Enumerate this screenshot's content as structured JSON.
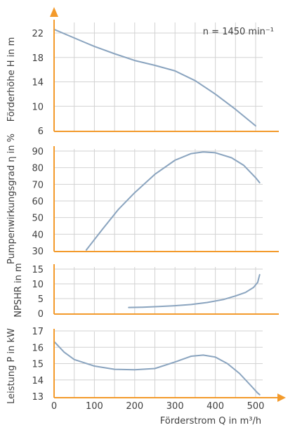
{
  "chart_data": [
    {
      "type": "line",
      "ylabel": "Förderhöhe H in m",
      "ylim": [
        6,
        24
      ],
      "yticks": [
        6,
        10,
        14,
        18,
        22
      ],
      "annotation": "n = 1450 min⁻¹",
      "series": [
        {
          "x": [
            0,
            50,
            100,
            150,
            200,
            250,
            300,
            350,
            400,
            450,
            500
          ],
          "y": [
            22.6,
            21.2,
            19.8,
            18.6,
            17.5,
            16.7,
            15.8,
            14.2,
            12.0,
            9.5,
            6.8
          ]
        }
      ]
    },
    {
      "type": "line",
      "ylabel": "Pumpenwirkungsgrad η in %",
      "ylim": [
        30,
        92
      ],
      "yticks": [
        30,
        40,
        50,
        60,
        70,
        80,
        90
      ],
      "series": [
        {
          "x": [
            80,
            120,
            160,
            200,
            250,
            300,
            340,
            370,
            400,
            440,
            470,
            500,
            510
          ],
          "y": [
            30.5,
            43,
            55,
            65,
            76,
            84.5,
            88.5,
            89.5,
            89,
            86,
            81.5,
            74,
            71
          ]
        }
      ]
    },
    {
      "type": "line",
      "ylabel": "NPSHR in m",
      "ylim": [
        0,
        15
      ],
      "yticks": [
        0,
        5,
        10,
        15
      ],
      "series": [
        {
          "x": [
            185,
            220,
            260,
            300,
            340,
            380,
            420,
            450,
            475,
            495,
            505,
            510
          ],
          "y": [
            2.0,
            2.1,
            2.3,
            2.6,
            3.0,
            3.7,
            4.7,
            5.9,
            7.1,
            8.8,
            10.5,
            13.1
          ]
        }
      ]
    },
    {
      "type": "line",
      "ylabel": "Leistung P in kW",
      "xlabel": "Förderstrom Q in m³/h",
      "xlim": [
        0,
        525
      ],
      "xticks": [
        0,
        100,
        200,
        300,
        400,
        500
      ],
      "ylim": [
        13,
        17.3
      ],
      "yticks": [
        13,
        14,
        15,
        16,
        17
      ],
      "series": [
        {
          "x": [
            0,
            25,
            50,
            100,
            150,
            200,
            250,
            300,
            340,
            370,
            400,
            430,
            460,
            490,
            505,
            510
          ],
          "y": [
            16.35,
            15.7,
            15.25,
            14.85,
            14.65,
            14.62,
            14.7,
            15.1,
            15.45,
            15.52,
            15.4,
            15.0,
            14.4,
            13.6,
            13.2,
            13.1
          ]
        }
      ]
    }
  ],
  "colors": {
    "axis": "#f39a2b",
    "curve": "#8aa4bf",
    "grid": "#d2d2d2",
    "text": "#404040"
  }
}
